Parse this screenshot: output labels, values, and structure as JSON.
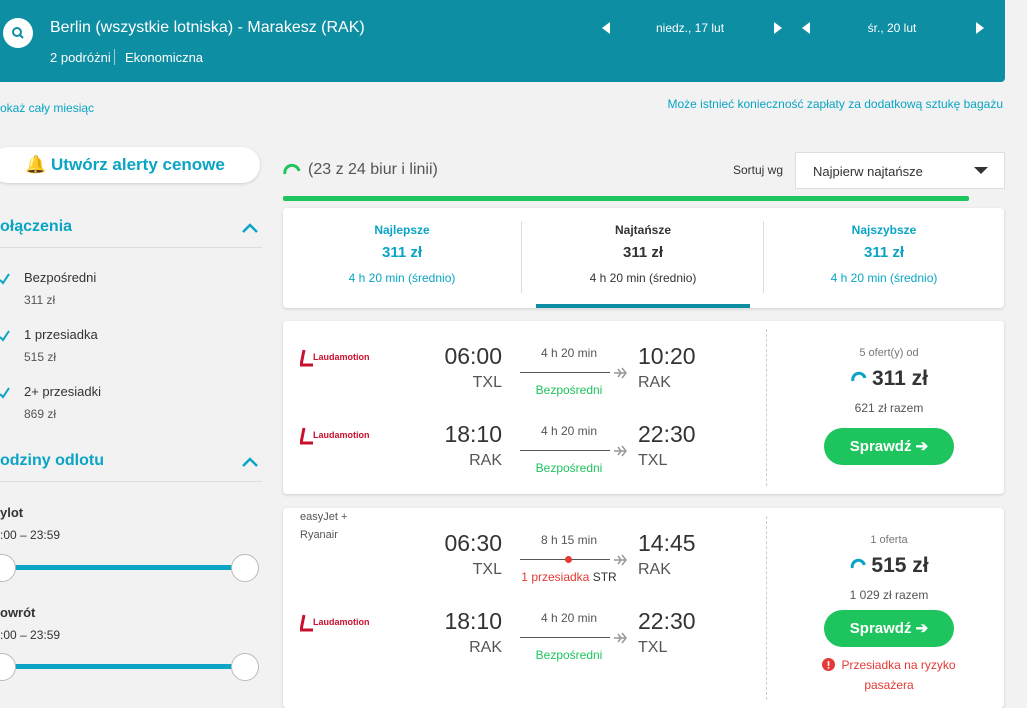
{
  "header": {
    "route": "Berlin (wszystkie lotniska) - Marakesz (RAK)",
    "travelers": "2 podróżni",
    "cabin": "Ekonomiczna",
    "depart_date": "niedz., 17 lut",
    "return_date": "śr., 20 lut"
  },
  "month_link": "okaż cały miesiąc",
  "baggage_note": "Może istnieć konieczność zapłaty za dodatkową sztukę bagażu",
  "sidebar": {
    "alert_button": "Utwórz alerty cenowe",
    "stops": {
      "title": "ołączenia",
      "options": [
        {
          "label": "Bezpośredni",
          "price": "311 zł"
        },
        {
          "label": "1 przesiadka",
          "price": "515 zł"
        },
        {
          "label": "2+ przesiadki",
          "price": "869 zł"
        }
      ]
    },
    "times": {
      "title": "odziny odlotu",
      "outbound": {
        "label": "ylot",
        "range": ":00 – 23:59"
      },
      "return": {
        "label": "owrót",
        "range": ":00 – 23:59"
      }
    }
  },
  "results": {
    "count_text": "(23 z 24 biur i linii)",
    "sort_label": "Sortuj wg",
    "sort_value": "Najpierw najtańsze",
    "tabs": [
      {
        "label": "Najlepsze",
        "price": "311 zł",
        "duration": "4 h 20 min (średnio)"
      },
      {
        "label": "Najtańsze",
        "price": "311 zł",
        "duration": "4 h 20 min (średnio)"
      },
      {
        "label": "Najszybsze",
        "price": "311 zł",
        "duration": "4 h 20 min (średnio)"
      }
    ],
    "cards": [
      {
        "offers": "5 ofert(y) od",
        "price": "311 zł",
        "total": "621 zł razem",
        "button": "Sprawdź ➔",
        "legs": [
          {
            "airline": "Laudamotion",
            "depart_time": "06:00",
            "depart_airport": "TXL",
            "duration": "4 h 20 min",
            "stops": "Bezpośredni",
            "arrive_time": "10:20",
            "arrive_airport": "RAK"
          },
          {
            "airline": "Laudamotion",
            "depart_time": "18:10",
            "depart_airport": "RAK",
            "duration": "4 h 20 min",
            "stops": "Bezpośredni",
            "arrive_time": "22:30",
            "arrive_airport": "TXL"
          }
        ]
      },
      {
        "offers": "1 oferta",
        "price": "515 zł",
        "total": "1 029 zł razem",
        "button": "Sprawdź ➔",
        "warning": "Przesiadka na ryzyko pasażera",
        "legs": [
          {
            "airline": "easyJet + Ryanair",
            "depart_time": "06:30",
            "depart_airport": "TXL",
            "duration": "8 h 15 min",
            "stops": "1 przesiadka",
            "stop_airport": "STR",
            "arrive_time": "14:45",
            "arrive_airport": "RAK"
          },
          {
            "airline": "Laudamotion",
            "depart_time": "18:10",
            "depart_airport": "RAK",
            "duration": "4 h 20 min",
            "stops": "Bezpośredni",
            "arrive_time": "22:30",
            "arrive_airport": "TXL"
          }
        ]
      }
    ]
  }
}
